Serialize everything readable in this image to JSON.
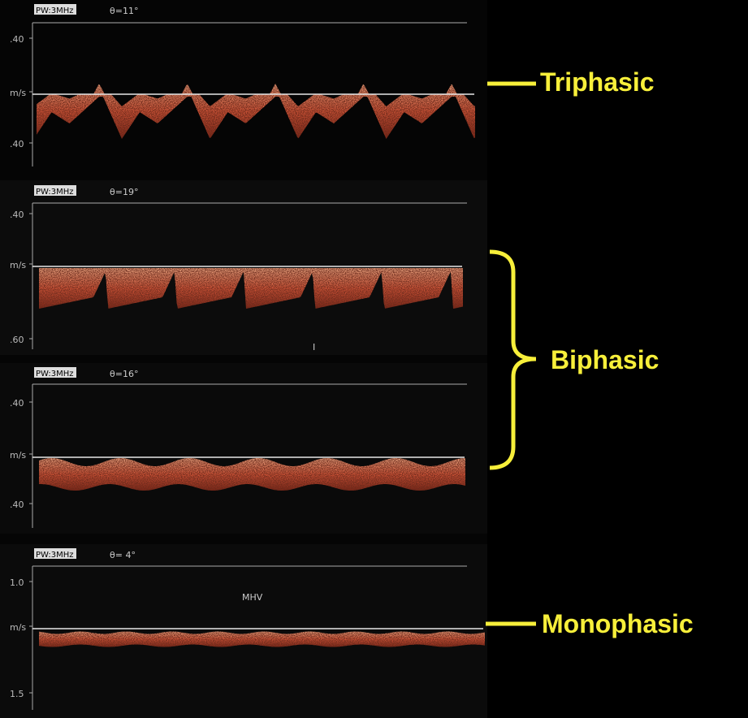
{
  "panels": [
    {
      "tag": "PW:3MHz",
      "angle": "θ=11°",
      "axis": [
        ".40",
        "m/s",
        ".40"
      ]
    },
    {
      "tag": "PW:3MHz",
      "angle": "θ=19°",
      "axis": [
        ".40",
        "m/s",
        ".60"
      ],
      "marker": "I"
    },
    {
      "tag": "PW:3MHz",
      "angle": "θ=16°",
      "axis": [
        ".40",
        "m/s",
        ".40"
      ]
    },
    {
      "tag": "PW:3MHz",
      "angle": "θ= 4°",
      "axis": [
        "1.0",
        "m/s",
        "1.5"
      ],
      "marker": "MHV"
    }
  ],
  "labels": {
    "triphasic": "Triphasic",
    "biphasic": "Biphasic",
    "monophasic": "Monophasic"
  }
}
